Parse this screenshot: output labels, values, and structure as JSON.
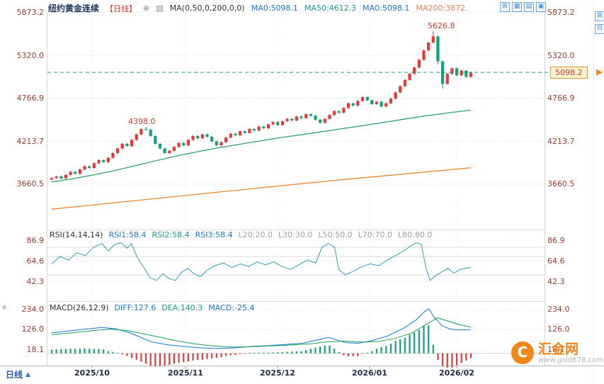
{
  "header": {
    "title": "纽约黄金连续",
    "period_tag": "【日线】",
    "ma_settings": "MA(0,50,0,200,0,0)",
    "ma_values": [
      "MA0:5098.1",
      "MA50:4612.3",
      "MA0:5098.1",
      "MA200:3872."
    ]
  },
  "icons": {
    "add_indicator": "⊕",
    "ma_chart": "▨",
    "layout_add": "⊞",
    "layout_grid": "▦",
    "layout_rows": "▤",
    "layout_single": "▣",
    "panel_expand": "⊞",
    "panel_collapse": "⊟",
    "pin": "✳",
    "period_arrow": "▲",
    "logo_mark": "C"
  },
  "price_axis_labels": [
    "5873.2",
    "5320.0",
    "4766.9",
    "4213.7",
    "3660.5"
  ],
  "current_price_tag": "5098.2",
  "annotations": {
    "peak_high": "5626.8",
    "october_high": "4398.0"
  },
  "rsi_panel": {
    "title": "RSI(14,14,14)",
    "values": [
      "RSI1:58.4",
      "RSI2:58.4",
      "RSI3:58.4"
    ],
    "levels": [
      "L20:20.0",
      "L30:30.0",
      "L50:50.0",
      "L70:70.0",
      "L80:80.0"
    ],
    "axis_labels": [
      "86.9",
      "64.6",
      "42.3"
    ]
  },
  "macd_panel": {
    "title": "MACD(26,12,9)",
    "values": [
      "DIFF:127.6",
      "DEA:140.3",
      "MACD:-25.4"
    ],
    "axis_labels": [
      "234.0",
      "126.0",
      "18.1"
    ]
  },
  "footer": {
    "period_label": "日线"
  },
  "brand": {
    "name": "汇金网",
    "site": "www.gold678.com"
  },
  "colors": {
    "up_candle": "#e23b3c",
    "down_candle": "#16a07c",
    "ma50_line": "#2fa36a",
    "ma200_line": "#e8862d",
    "current_price_line": "#1fa08c",
    "rsi_line": "#2f9db6",
    "diff_line": "#1877d2",
    "dea_line": "#18a05c",
    "accent_orange": "#f08519",
    "axis_label": "#a03a30",
    "tag_bg": "#fdf3cf",
    "tag_border": "#e2932f"
  },
  "chart_data": {
    "type": "candlestick",
    "symbol": "纽约黄金连续",
    "period": "daily",
    "x_labels": [
      "2025/10",
      "2025/11",
      "2025/12",
      "2026/01",
      "2026/02"
    ],
    "price_gridlines": [
      5873.2,
      5320.0,
      4766.9,
      4213.7,
      3660.5
    ],
    "current_price": 5098.2,
    "annotated_highs": [
      4398.0,
      5626.8
    ],
    "candles": [
      [
        3720,
        3752,
        3708,
        3740
      ],
      [
        3740,
        3772,
        3728,
        3760
      ],
      [
        3760,
        3772,
        3723,
        3735
      ],
      [
        3735,
        3792,
        3723,
        3780
      ],
      [
        3780,
        3832,
        3768,
        3820
      ],
      [
        3820,
        3832,
        3783,
        3795
      ],
      [
        3795,
        3862,
        3783,
        3850
      ],
      [
        3850,
        3902,
        3838,
        3890
      ],
      [
        3890,
        3902,
        3858,
        3870
      ],
      [
        3870,
        3942,
        3858,
        3930
      ],
      [
        3930,
        3982,
        3918,
        3970
      ],
      [
        3970,
        3982,
        3933,
        3945
      ],
      [
        3945,
        4012,
        3933,
        4000
      ],
      [
        4000,
        4072,
        3988,
        4060
      ],
      [
        4060,
        4132,
        4048,
        4120
      ],
      [
        4120,
        4192,
        4108,
        4180
      ],
      [
        4180,
        4192,
        4138,
        4150
      ],
      [
        4150,
        4242,
        4138,
        4230
      ],
      [
        4230,
        4312,
        4218,
        4300
      ],
      [
        4300,
        4382,
        4288,
        4370
      ],
      [
        4370,
        4398,
        4348,
        4360
      ],
      [
        4360,
        4372,
        4268,
        4280
      ],
      [
        4280,
        4292,
        4168,
        4180
      ],
      [
        4180,
        4192,
        4108,
        4120
      ],
      [
        4120,
        4132,
        4048,
        4060
      ],
      [
        4060,
        4102,
        4048,
        4090
      ],
      [
        4090,
        4152,
        4078,
        4140
      ],
      [
        4140,
        4202,
        4128,
        4190
      ],
      [
        4190,
        4202,
        4148,
        4160
      ],
      [
        4160,
        4242,
        4148,
        4230
      ],
      [
        4230,
        4292,
        4218,
        4280
      ],
      [
        4280,
        4292,
        4238,
        4250
      ],
      [
        4250,
        4312,
        4238,
        4300
      ],
      [
        4300,
        4312,
        4258,
        4270
      ],
      [
        4270,
        4282,
        4198,
        4210
      ],
      [
        4210,
        4222,
        4148,
        4160
      ],
      [
        4160,
        4212,
        4148,
        4200
      ],
      [
        4200,
        4272,
        4188,
        4260
      ],
      [
        4260,
        4322,
        4248,
        4310
      ],
      [
        4310,
        4322,
        4278,
        4290
      ],
      [
        4290,
        4352,
        4278,
        4340
      ],
      [
        4340,
        4352,
        4308,
        4320
      ],
      [
        4320,
        4382,
        4308,
        4370
      ],
      [
        4370,
        4382,
        4338,
        4350
      ],
      [
        4350,
        4412,
        4338,
        4400
      ],
      [
        4400,
        4412,
        4368,
        4380
      ],
      [
        4380,
        4442,
        4368,
        4430
      ],
      [
        4430,
        4472,
        4418,
        4460
      ],
      [
        4460,
        4472,
        4408,
        4420
      ],
      [
        4420,
        4482,
        4408,
        4470
      ],
      [
        4470,
        4512,
        4458,
        4500
      ],
      [
        4500,
        4512,
        4468,
        4480
      ],
      [
        4480,
        4542,
        4468,
        4530
      ],
      [
        4530,
        4542,
        4498,
        4510
      ],
      [
        4510,
        4572,
        4498,
        4560
      ],
      [
        4560,
        4572,
        4528,
        4540
      ],
      [
        4540,
        4552,
        4478,
        4490
      ],
      [
        4490,
        4502,
        4438,
        4450
      ],
      [
        4450,
        4512,
        4438,
        4500
      ],
      [
        4500,
        4562,
        4488,
        4550
      ],
      [
        4550,
        4612,
        4538,
        4600
      ],
      [
        4600,
        4612,
        4568,
        4580
      ],
      [
        4580,
        4652,
        4568,
        4640
      ],
      [
        4640,
        4712,
        4628,
        4700
      ],
      [
        4700,
        4712,
        4658,
        4670
      ],
      [
        4670,
        4742,
        4658,
        4730
      ],
      [
        4730,
        4792,
        4718,
        4780
      ],
      [
        4780,
        4792,
        4728,
        4740
      ],
      [
        4740,
        4752,
        4678,
        4690
      ],
      [
        4690,
        4732,
        4678,
        4720
      ],
      [
        4720,
        4732,
        4648,
        4660
      ],
      [
        4660,
        4712,
        4648,
        4700
      ],
      [
        4700,
        4772,
        4688,
        4760
      ],
      [
        4760,
        4852,
        4748,
        4840
      ],
      [
        4840,
        4932,
        4828,
        4920
      ],
      [
        4920,
        5012,
        4908,
        5000
      ],
      [
        5000,
        5092,
        4988,
        5080
      ],
      [
        5080,
        5172,
        5068,
        5160
      ],
      [
        5160,
        5272,
        5148,
        5260
      ],
      [
        5260,
        5392,
        5248,
        5380
      ],
      [
        5380,
        5492,
        5368,
        5480
      ],
      [
        5480,
        5626.8,
        5468,
        5560
      ],
      [
        5560,
        5572,
        5200,
        5240
      ],
      [
        5240,
        5252,
        4890,
        4950
      ],
      [
        4950,
        5092,
        4938,
        5080
      ],
      [
        5080,
        5162,
        5068,
        5150
      ],
      [
        5150,
        5162,
        5048,
        5060
      ],
      [
        5060,
        5132,
        5048,
        5120
      ],
      [
        5120,
        5132,
        5028,
        5040
      ],
      [
        5040,
        5110,
        5028,
        5098.2
      ]
    ],
    "ma50": [
      [
        0,
        3690
      ],
      [
        0.05,
        3730
      ],
      [
        0.1,
        3780
      ],
      [
        0.15,
        3835
      ],
      [
        0.2,
        3900
      ],
      [
        0.25,
        3965
      ],
      [
        0.3,
        4025
      ],
      [
        0.35,
        4080
      ],
      [
        0.4,
        4130
      ],
      [
        0.45,
        4175
      ],
      [
        0.5,
        4220
      ],
      [
        0.55,
        4262
      ],
      [
        0.6,
        4300
      ],
      [
        0.65,
        4340
      ],
      [
        0.7,
        4380
      ],
      [
        0.75,
        4420
      ],
      [
        0.8,
        4462
      ],
      [
        0.85,
        4505
      ],
      [
        0.9,
        4545
      ],
      [
        0.95,
        4580
      ],
      [
        1,
        4612.3
      ]
    ],
    "ma200": [
      [
        0,
        3340
      ],
      [
        0.1,
        3395
      ],
      [
        0.2,
        3450
      ],
      [
        0.3,
        3505
      ],
      [
        0.4,
        3560
      ],
      [
        0.5,
        3615
      ],
      [
        0.6,
        3670
      ],
      [
        0.7,
        3722
      ],
      [
        0.8,
        3772
      ],
      [
        0.9,
        3822
      ],
      [
        1,
        3872
      ]
    ],
    "rsi": {
      "gridlines": [
        86.9,
        64.6,
        42.3
      ],
      "levels": [
        80,
        70,
        50
      ],
      "current": [
        58.4,
        58.4,
        58.4
      ],
      "points": [
        [
          0,
          62
        ],
        [
          0.02,
          70
        ],
        [
          0.04,
          66
        ],
        [
          0.06,
          74
        ],
        [
          0.08,
          71
        ],
        [
          0.1,
          80
        ],
        [
          0.12,
          84
        ],
        [
          0.135,
          76
        ],
        [
          0.15,
          83
        ],
        [
          0.165,
          85
        ],
        [
          0.18,
          79
        ],
        [
          0.19,
          84
        ],
        [
          0.205,
          68
        ],
        [
          0.22,
          58
        ],
        [
          0.235,
          47
        ],
        [
          0.25,
          44
        ],
        [
          0.265,
          51
        ],
        [
          0.28,
          46
        ],
        [
          0.295,
          44
        ],
        [
          0.31,
          53
        ],
        [
          0.325,
          57
        ],
        [
          0.34,
          51
        ],
        [
          0.355,
          48
        ],
        [
          0.37,
          55
        ],
        [
          0.39,
          60
        ],
        [
          0.41,
          63
        ],
        [
          0.43,
          58
        ],
        [
          0.45,
          62
        ],
        [
          0.47,
          59
        ],
        [
          0.49,
          64
        ],
        [
          0.51,
          61
        ],
        [
          0.53,
          64
        ],
        [
          0.55,
          59
        ],
        [
          0.57,
          56
        ],
        [
          0.59,
          61
        ],
        [
          0.61,
          66
        ],
        [
          0.63,
          63
        ],
        [
          0.645,
          80
        ],
        [
          0.66,
          84
        ],
        [
          0.675,
          80
        ],
        [
          0.685,
          56
        ],
        [
          0.7,
          50
        ],
        [
          0.72,
          54
        ],
        [
          0.74,
          59
        ],
        [
          0.76,
          62
        ],
        [
          0.78,
          60
        ],
        [
          0.8,
          66
        ],
        [
          0.82,
          71
        ],
        [
          0.84,
          76
        ],
        [
          0.855,
          81
        ],
        [
          0.87,
          85
        ],
        [
          0.882,
          83
        ],
        [
          0.893,
          57
        ],
        [
          0.903,
          44
        ],
        [
          0.915,
          49
        ],
        [
          0.93,
          53
        ],
        [
          0.945,
          57
        ],
        [
          0.96,
          52
        ],
        [
          0.975,
          56
        ],
        [
          1,
          58.4
        ]
      ]
    },
    "macd": {
      "gridlines": [
        234.0,
        126.0,
        18.1
      ],
      "diff_current": 127.6,
      "dea_current": 140.3,
      "hist_current": -25.4,
      "diff": [
        [
          0,
          110
        ],
        [
          0.04,
          120
        ],
        [
          0.08,
          130
        ],
        [
          0.12,
          138
        ],
        [
          0.15,
          132
        ],
        [
          0.18,
          115
        ],
        [
          0.21,
          88
        ],
        [
          0.24,
          60
        ],
        [
          0.28,
          45
        ],
        [
          0.32,
          36
        ],
        [
          0.36,
          29
        ],
        [
          0.4,
          26
        ],
        [
          0.44,
          30
        ],
        [
          0.48,
          38
        ],
        [
          0.52,
          42
        ],
        [
          0.56,
          48
        ],
        [
          0.6,
          55
        ],
        [
          0.63,
          70
        ],
        [
          0.66,
          85
        ],
        [
          0.68,
          72
        ],
        [
          0.7,
          58
        ],
        [
          0.73,
          54
        ],
        [
          0.76,
          66
        ],
        [
          0.8,
          92
        ],
        [
          0.84,
          135
        ],
        [
          0.87,
          180
        ],
        [
          0.89,
          225
        ],
        [
          0.9,
          238
        ],
        [
          0.91,
          200
        ],
        [
          0.93,
          150
        ],
        [
          0.95,
          130
        ],
        [
          0.97,
          125
        ],
        [
          1,
          127.6
        ]
      ],
      "dea": [
        [
          0,
          100
        ],
        [
          0.05,
          110
        ],
        [
          0.1,
          122
        ],
        [
          0.14,
          130
        ],
        [
          0.18,
          122
        ],
        [
          0.22,
          104
        ],
        [
          0.26,
          86
        ],
        [
          0.3,
          66
        ],
        [
          0.34,
          51
        ],
        [
          0.38,
          41
        ],
        [
          0.42,
          34
        ],
        [
          0.46,
          34
        ],
        [
          0.5,
          38
        ],
        [
          0.54,
          42
        ],
        [
          0.58,
          46
        ],
        [
          0.62,
          52
        ],
        [
          0.66,
          62
        ],
        [
          0.7,
          66
        ],
        [
          0.74,
          60
        ],
        [
          0.78,
          64
        ],
        [
          0.82,
          80
        ],
        [
          0.86,
          110
        ],
        [
          0.89,
          150
        ],
        [
          0.92,
          190
        ],
        [
          0.95,
          170
        ],
        [
          0.97,
          155
        ],
        [
          1,
          140.3
        ]
      ]
    }
  }
}
